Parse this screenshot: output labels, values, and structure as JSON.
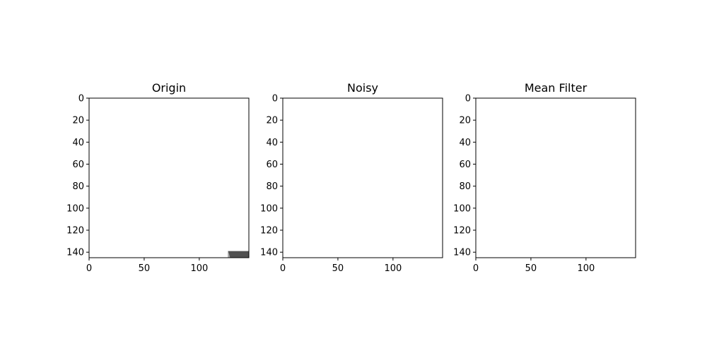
{
  "figure_title": "",
  "chart_data": [
    {
      "type": "image",
      "title": "Origin",
      "xlabel": "",
      "ylabel": "",
      "xlim": [
        0,
        145
      ],
      "ylim": [
        145,
        0
      ],
      "xticks": [
        0,
        50,
        100
      ],
      "yticks": [
        0,
        20,
        40,
        60,
        80,
        100,
        120,
        140
      ],
      "image_size": [
        145,
        145
      ],
      "noise": "none",
      "grid": false
    },
    {
      "type": "image",
      "title": "Noisy",
      "xlabel": "",
      "ylabel": "",
      "xlim": [
        0,
        145
      ],
      "ylim": [
        145,
        0
      ],
      "xticks": [
        0,
        50,
        100
      ],
      "yticks": [
        0,
        20,
        40,
        60,
        80,
        100,
        120,
        140
      ],
      "image_size": [
        145,
        145
      ],
      "noise": "gaussian",
      "grid": false
    },
    {
      "type": "image",
      "title": "Mean Filter",
      "xlabel": "",
      "ylabel": "",
      "xlim": [
        0,
        145
      ],
      "ylim": [
        145,
        0
      ],
      "xticks": [
        0,
        50,
        100
      ],
      "yticks": [
        0,
        20,
        40,
        60,
        80,
        100,
        120,
        140
      ],
      "image_size": [
        145,
        145
      ],
      "noise": "smoothed",
      "grid": false
    }
  ]
}
